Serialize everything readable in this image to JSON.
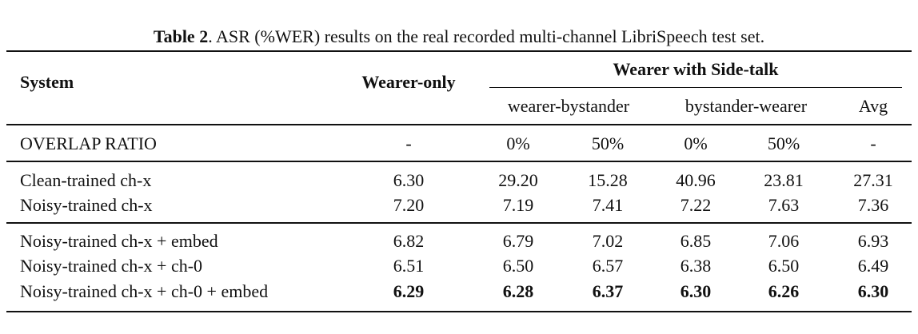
{
  "caption": {
    "label": "Table 2",
    "text": ". ASR (%WER) results on the real recorded multi-channel LibriSpeech test set."
  },
  "header": {
    "system": "System",
    "wearer_only": "Wearer-only",
    "side_talk": "Wearer with Side-talk",
    "subgroups": [
      "wearer-bystander",
      "bystander-wearer",
      "Avg"
    ]
  },
  "overlap": {
    "label": "OVERLAP RATIO",
    "values": [
      "-",
      "0%",
      "50%",
      "0%",
      "50%",
      "-"
    ]
  },
  "groups": [
    [
      {
        "label": "Clean-trained ch-x",
        "values": [
          "6.30",
          "29.20",
          "15.28",
          "40.96",
          "23.81",
          "27.31"
        ]
      },
      {
        "label": "Noisy-trained ch-x",
        "values": [
          "7.20",
          "7.19",
          "7.41",
          "7.22",
          "7.63",
          "7.36"
        ]
      }
    ],
    [
      {
        "label": "Noisy-trained ch-x + embed",
        "values": [
          "6.82",
          "6.79",
          "7.02",
          "6.85",
          "7.06",
          "6.93"
        ]
      },
      {
        "label": "Noisy-trained ch-x + ch-0",
        "values": [
          "6.51",
          "6.50",
          "6.57",
          "6.38",
          "6.50",
          "6.49"
        ]
      },
      {
        "label": "Noisy-trained ch-x + ch-0 + embed",
        "values": [
          "6.29",
          "6.28",
          "6.37",
          "6.30",
          "6.26",
          "6.30"
        ],
        "bold": true
      }
    ]
  ]
}
